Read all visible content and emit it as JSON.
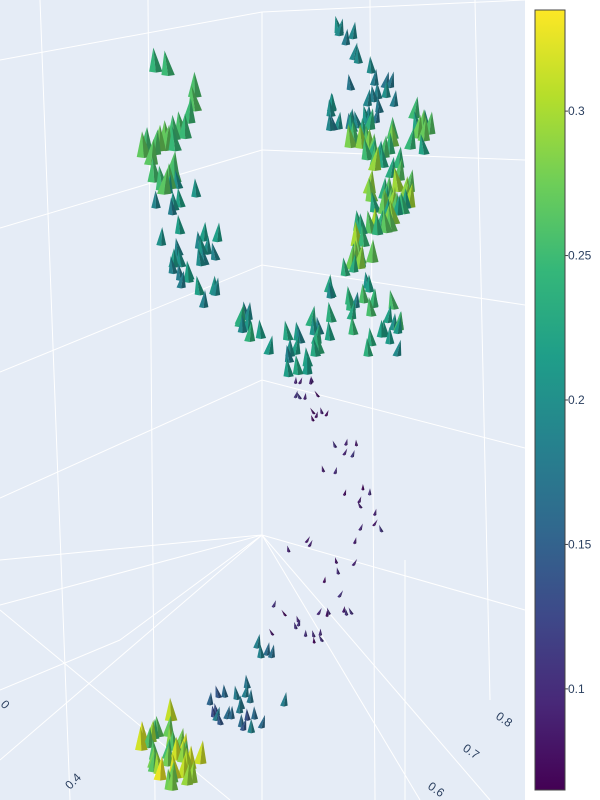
{
  "chart_data": {
    "type": "cone",
    "title": "",
    "axes": {
      "x": {
        "label": "",
        "ticks": [
          "0",
          "0.4"
        ]
      },
      "y": {
        "label": "",
        "ticks": [
          "0.6",
          "0.7",
          "0.8"
        ]
      },
      "z": {
        "label": "",
        "ticks": []
      }
    },
    "colorscale": {
      "name": "Viridis",
      "range": [
        0.065,
        0.335
      ],
      "ticks": [
        "0.1",
        "0.15",
        "0.2",
        "0.25",
        "0.3"
      ],
      "stops": [
        "#440154",
        "#482878",
        "#3e4989",
        "#31688e",
        "#26828e",
        "#1f9e89",
        "#35b779",
        "#6ece58",
        "#b5de2b",
        "#fde725"
      ]
    },
    "scene": {
      "background": "#e5ecf6",
      "grid": true
    },
    "clusters": [
      {
        "region": "left-arc-top",
        "count": 22,
        "norm": [
          0.24,
          0.28
        ]
      },
      {
        "region": "left-arc-middle",
        "count": 24,
        "norm": [
          0.18,
          0.22
        ]
      },
      {
        "region": "lower-left-arc",
        "count": 34,
        "norm": [
          0.18,
          0.24
        ]
      },
      {
        "region": "right-column-top",
        "count": 30,
        "norm": [
          0.17,
          0.21
        ]
      },
      {
        "region": "right-column-middle",
        "count": 70,
        "norm": [
          0.22,
          0.3
        ]
      },
      {
        "region": "right-column-lower",
        "count": 30,
        "norm": [
          0.19,
          0.26
        ]
      },
      {
        "region": "central-stream",
        "count": 55,
        "norm": [
          0.07,
          0.11
        ]
      },
      {
        "region": "bottom-stream",
        "count": 26,
        "norm": [
          0.13,
          0.19
        ]
      },
      {
        "region": "bottom-cluster",
        "count": 34,
        "norm": [
          0.24,
          0.33
        ]
      }
    ]
  }
}
